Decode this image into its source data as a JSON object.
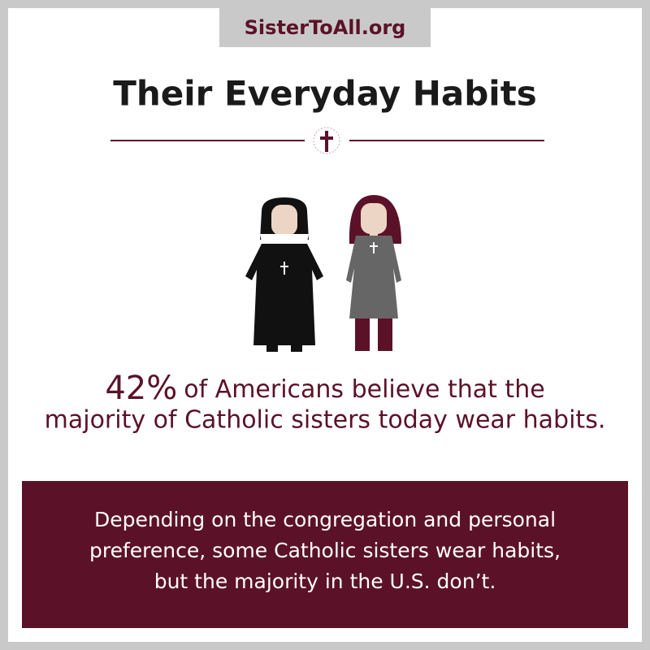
{
  "header": {
    "site": "SisterToAll.org",
    "title": "Their Everyday Habits"
  },
  "stat": {
    "number": "42%",
    "lines": [
      "of Americans believe that the",
      "majority of Catholic sisters today wear habits."
    ]
  },
  "callout": {
    "lines": [
      "Depending on the congregation and personal",
      "preference, some Catholic sisters wear habits,",
      "but the majority in the U.S. don’t."
    ]
  }
}
